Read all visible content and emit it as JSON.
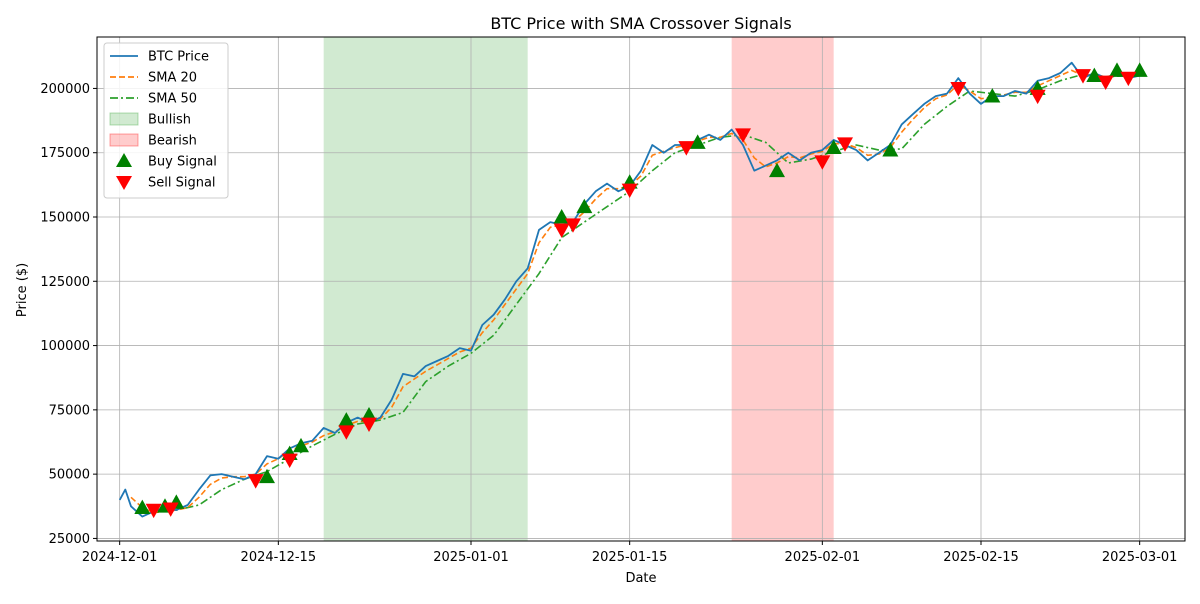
{
  "chart_data": {
    "type": "line",
    "title": "BTC Price with SMA Crossover Signals",
    "xlabel": "Date",
    "ylabel": "Price ($)",
    "xlim": [
      "2024-11-29",
      "2025-03-05"
    ],
    "ylim": [
      24000,
      220000
    ],
    "x_ticks": [
      "2024-12-01",
      "2024-12-15",
      "2025-01-01",
      "2025-01-15",
      "2025-02-01",
      "2025-02-15",
      "2025-03-01"
    ],
    "y_ticks": [
      25000,
      50000,
      75000,
      100000,
      125000,
      150000,
      175000,
      200000
    ],
    "grid": true,
    "legend_position": "top-left",
    "colors": {
      "price": "#1f77b4",
      "sma20": "#ff7f0e",
      "sma50": "#2ca02c",
      "bullish": "#2ca02c",
      "bearish": "#ff0000",
      "buy": "#008000",
      "sell": "#ff0000"
    },
    "legend": [
      {
        "label": "BTC Price",
        "kind": "line",
        "color": "#1f77b4",
        "dash": ""
      },
      {
        "label": "SMA 20",
        "kind": "line",
        "color": "#ff7f0e",
        "dash": "6,3"
      },
      {
        "label": "SMA 50",
        "kind": "line",
        "color": "#2ca02c",
        "dash": "8,3,2,3"
      },
      {
        "label": "Bullish",
        "kind": "patch",
        "color": "#2ca02c",
        "opacity": 0.22
      },
      {
        "label": "Bearish",
        "kind": "patch",
        "color": "#ff0000",
        "opacity": 0.2
      },
      {
        "label": "Buy Signal",
        "kind": "up",
        "color": "#008000"
      },
      {
        "label": "Sell Signal",
        "kind": "down",
        "color": "#ff0000"
      }
    ],
    "regions": [
      {
        "name": "Bullish",
        "start": "2024-12-19",
        "end": "2025-01-06",
        "color": "#2ca02c",
        "opacity": 0.22
      },
      {
        "name": "Bearish",
        "start": "2025-01-24",
        "end": "2025-02-02",
        "color": "#ff0000",
        "opacity": 0.2
      }
    ],
    "series": [
      {
        "name": "BTC Price",
        "style": "solid",
        "color": "#1f77b4",
        "x": [
          "2024-12-01",
          "2024-12-01T12",
          "2024-12-02",
          "2024-12-03",
          "2024-12-04",
          "2024-12-05",
          "2024-12-06",
          "2024-12-07",
          "2024-12-08",
          "2024-12-09",
          "2024-12-10",
          "2024-12-11",
          "2024-12-12",
          "2024-12-13",
          "2024-12-14",
          "2024-12-15",
          "2024-12-16",
          "2024-12-17",
          "2024-12-18",
          "2024-12-19",
          "2024-12-20",
          "2024-12-21",
          "2024-12-22",
          "2024-12-23",
          "2024-12-24",
          "2024-12-25",
          "2024-12-26",
          "2024-12-27",
          "2024-12-28",
          "2024-12-29",
          "2024-12-30",
          "2024-12-31",
          "2025-01-01",
          "2025-01-02",
          "2025-01-03",
          "2025-01-04",
          "2025-01-05",
          "2025-01-06",
          "2025-01-07",
          "2025-01-08",
          "2025-01-09",
          "2025-01-10",
          "2025-01-11",
          "2025-01-12",
          "2025-01-13",
          "2025-01-14",
          "2025-01-15",
          "2025-01-16",
          "2025-01-17",
          "2025-01-18",
          "2025-01-19",
          "2025-01-20",
          "2025-01-21",
          "2025-01-22",
          "2025-01-23",
          "2025-01-24",
          "2025-01-25",
          "2025-01-26",
          "2025-01-27",
          "2025-01-28",
          "2025-01-29",
          "2025-01-30",
          "2025-01-31",
          "2025-02-01",
          "2025-02-02",
          "2025-02-03",
          "2025-02-04",
          "2025-02-05",
          "2025-02-06",
          "2025-02-07",
          "2025-02-08",
          "2025-02-09",
          "2025-02-10",
          "2025-02-11",
          "2025-02-12",
          "2025-02-13",
          "2025-02-14",
          "2025-02-15",
          "2025-02-16",
          "2025-02-17",
          "2025-02-18",
          "2025-02-19",
          "2025-02-20",
          "2025-02-21",
          "2025-02-22",
          "2025-02-23",
          "2025-02-24",
          "2025-02-25",
          "2025-02-26",
          "2025-02-27",
          "2025-02-28",
          "2025-03-01"
        ],
        "values": [
          40000,
          44000,
          37500,
          33500,
          35500,
          37000,
          36000,
          38000,
          44000,
          49500,
          50000,
          49000,
          48000,
          50000,
          57000,
          56000,
          60000,
          62000,
          63000,
          68000,
          66000,
          70000,
          72000,
          70000,
          72000,
          79000,
          89000,
          88000,
          92000,
          94000,
          96000,
          99000,
          98000,
          108000,
          112000,
          118000,
          125000,
          130000,
          145000,
          148000,
          147000,
          148000,
          155000,
          160000,
          163000,
          160000,
          162000,
          168000,
          178000,
          175000,
          178000,
          178000,
          180000,
          182000,
          180000,
          184000,
          178000,
          168000,
          170000,
          172000,
          175000,
          172000,
          175000,
          176000,
          180000,
          178000,
          176000,
          172000,
          175000,
          178000,
          186000,
          190000,
          194000,
          197000,
          198000,
          204000,
          198000,
          194000,
          197000,
          197000,
          199000,
          198000,
          203000,
          204000,
          206000,
          210000,
          204000,
          206000,
          204000,
          206000,
          204000,
          205000
        ]
      },
      {
        "name": "SMA 20",
        "style": "dashed",
        "color": "#ff7f0e",
        "x": [
          "2024-12-02",
          "2024-12-03",
          "2024-12-04",
          "2024-12-05",
          "2024-12-06",
          "2024-12-07",
          "2024-12-08",
          "2024-12-09",
          "2024-12-10",
          "2024-12-11",
          "2024-12-12",
          "2024-12-13",
          "2024-12-14",
          "2024-12-15",
          "2024-12-16",
          "2024-12-17",
          "2024-12-18",
          "2024-12-19",
          "2024-12-20",
          "2024-12-21",
          "2024-12-22",
          "2024-12-23",
          "2024-12-24",
          "2024-12-25",
          "2024-12-26",
          "2024-12-27",
          "2024-12-28",
          "2024-12-29",
          "2024-12-30",
          "2024-12-31",
          "2025-01-01",
          "2025-01-02",
          "2025-01-03",
          "2025-01-04",
          "2025-01-05",
          "2025-01-06",
          "2025-01-07",
          "2025-01-08",
          "2025-01-09",
          "2025-01-10",
          "2025-01-11",
          "2025-01-12",
          "2025-01-13",
          "2025-01-14",
          "2025-01-15",
          "2025-01-16",
          "2025-01-17",
          "2025-01-18",
          "2025-01-19",
          "2025-01-20",
          "2025-01-21",
          "2025-01-22",
          "2025-01-23",
          "2025-01-24",
          "2025-01-25",
          "2025-01-26",
          "2025-01-27",
          "2025-01-28",
          "2025-01-29",
          "2025-01-30",
          "2025-01-31",
          "2025-02-01",
          "2025-02-02",
          "2025-02-03",
          "2025-02-04",
          "2025-02-05",
          "2025-02-06",
          "2025-02-07",
          "2025-02-08",
          "2025-02-09",
          "2025-02-10",
          "2025-02-11",
          "2025-02-12",
          "2025-02-13",
          "2025-02-14",
          "2025-02-15",
          "2025-02-16",
          "2025-02-17",
          "2025-02-18",
          "2025-02-19",
          "2025-02-20",
          "2025-02-21",
          "2025-02-22",
          "2025-02-23",
          "2025-02-24",
          "2025-02-25",
          "2025-02-26",
          "2025-02-27",
          "2025-02-28",
          "2025-03-01"
        ],
        "values": [
          41000,
          37000,
          35000,
          35500,
          36000,
          37000,
          41000,
          46000,
          48500,
          49000,
          49000,
          50000,
          54000,
          56000,
          59000,
          61000,
          62500,
          65000,
          66500,
          69000,
          70500,
          70500,
          71500,
          76000,
          84000,
          87000,
          90000,
          92500,
          95000,
          97500,
          99000,
          105000,
          110000,
          116000,
          122000,
          128000,
          140000,
          146000,
          147000,
          148000,
          152000,
          157000,
          161000,
          161000,
          162000,
          166000,
          174000,
          175500,
          177000,
          178000,
          179500,
          181000,
          181000,
          182500,
          180000,
          173000,
          169500,
          171000,
          173500,
          173000,
          174500,
          175500,
          178500,
          178500,
          177000,
          174000,
          174500,
          177000,
          183000,
          188000,
          192500,
          196000,
          197500,
          201500,
          199000,
          196000,
          196500,
          197500,
          198500,
          198500,
          201000,
          203000,
          205000,
          207000,
          205000,
          205500,
          204500,
          205500,
          205000,
          205500
        ]
      },
      {
        "name": "SMA 50",
        "style": "dashdot",
        "color": "#2ca02c",
        "x": [
          "2024-12-04",
          "2024-12-06",
          "2024-12-08",
          "2024-12-10",
          "2024-12-12",
          "2024-12-14",
          "2024-12-16",
          "2024-12-18",
          "2024-12-20",
          "2024-12-22",
          "2024-12-24",
          "2024-12-26",
          "2024-12-28",
          "2024-12-30",
          "2025-01-01",
          "2025-01-03",
          "2025-01-05",
          "2025-01-07",
          "2025-01-09",
          "2025-01-11",
          "2025-01-13",
          "2025-01-15",
          "2025-01-17",
          "2025-01-19",
          "2025-01-21",
          "2025-01-23",
          "2025-01-25",
          "2025-01-27",
          "2025-01-29",
          "2025-01-31",
          "2025-02-02",
          "2025-02-04",
          "2025-02-06",
          "2025-02-08",
          "2025-02-10",
          "2025-02-12",
          "2025-02-14",
          "2025-02-16",
          "2025-02-18",
          "2025-02-20",
          "2025-02-22",
          "2025-02-24",
          "2025-02-26",
          "2025-02-28",
          "2025-03-01"
        ],
        "values": [
          36000,
          36000,
          38000,
          44000,
          48000,
          51000,
          56000,
          61000,
          65500,
          69500,
          71000,
          74000,
          86000,
          92000,
          97000,
          104000,
          116000,
          128000,
          142000,
          148000,
          154000,
          160000,
          168000,
          175000,
          178000,
          181000,
          182000,
          179000,
          171000,
          172500,
          175500,
          178000,
          176000,
          176500,
          186000,
          193000,
          199000,
          198000,
          197000,
          199500,
          203000,
          205500,
          204500,
          205000,
          205000
        ]
      }
    ],
    "buy_signals": [
      {
        "x": "2024-12-03",
        "y": 37000
      },
      {
        "x": "2024-12-05",
        "y": 37500
      },
      {
        "x": "2024-12-06",
        "y": 39000
      },
      {
        "x": "2024-12-14",
        "y": 49000
      },
      {
        "x": "2024-12-16",
        "y": 58000
      },
      {
        "x": "2024-12-17",
        "y": 61000
      },
      {
        "x": "2024-12-21",
        "y": 71000
      },
      {
        "x": "2024-12-23",
        "y": 73000
      },
      {
        "x": "2025-01-09",
        "y": 150000
      },
      {
        "x": "2025-01-11",
        "y": 154000
      },
      {
        "x": "2025-01-15",
        "y": 163500
      },
      {
        "x": "2025-01-21",
        "y": 179000
      },
      {
        "x": "2025-01-28",
        "y": 168000
      },
      {
        "x": "2025-02-02",
        "y": 177000
      },
      {
        "x": "2025-02-07",
        "y": 176000
      },
      {
        "x": "2025-02-16",
        "y": 197000
      },
      {
        "x": "2025-02-20",
        "y": 200000
      },
      {
        "x": "2025-02-25",
        "y": 205000
      },
      {
        "x": "2025-02-27",
        "y": 207000
      },
      {
        "x": "2025-02-29",
        "y": 207000
      }
    ],
    "sell_signals": [
      {
        "x": "2024-12-04",
        "y": 36000
      },
      {
        "x": "2024-12-05T12",
        "y": 36500
      },
      {
        "x": "2024-12-13",
        "y": 47500
      },
      {
        "x": "2024-12-16",
        "y": 55500
      },
      {
        "x": "2024-12-21",
        "y": 66500
      },
      {
        "x": "2024-12-23",
        "y": 69500
      },
      {
        "x": "2025-01-09",
        "y": 145000
      },
      {
        "x": "2025-01-10",
        "y": 147000
      },
      {
        "x": "2025-01-15",
        "y": 160500
      },
      {
        "x": "2025-01-20",
        "y": 177000
      },
      {
        "x": "2025-01-25",
        "y": 182000
      },
      {
        "x": "2025-02-01",
        "y": 171500
      },
      {
        "x": "2025-02-03",
        "y": 178500
      },
      {
        "x": "2025-02-13",
        "y": 200000
      },
      {
        "x": "2025-02-20",
        "y": 197000
      },
      {
        "x": "2025-02-24",
        "y": 205000
      },
      {
        "x": "2025-02-26",
        "y": 202500
      },
      {
        "x": "2025-02-28",
        "y": 204000
      }
    ]
  }
}
